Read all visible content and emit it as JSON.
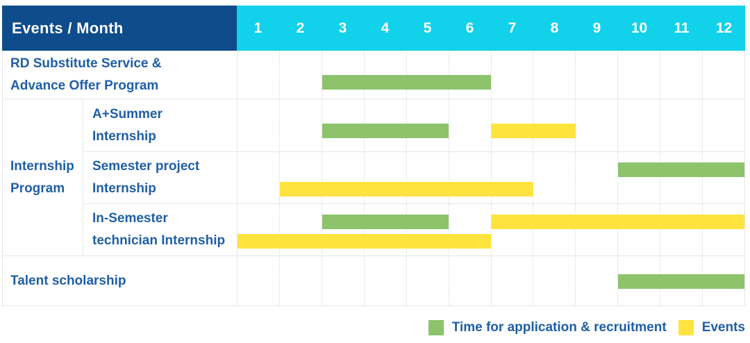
{
  "colors": {
    "navy": "#0E4C8B",
    "cyan": "#12D1EA",
    "green": "#8CC36B",
    "yellow": "#FFE33E",
    "label_blue": "#1E5FA6",
    "grid_line": "#E6E6E6",
    "grid_dot": "#D8D8D8"
  },
  "header": {
    "title": "Events / Month",
    "months": [
      "1",
      "2",
      "3",
      "4",
      "5",
      "6",
      "7",
      "8",
      "9",
      "10",
      "11",
      "12"
    ]
  },
  "group_label": "Internship\nProgram",
  "rows": [
    {
      "label": "RD Substitute Service &\nAdvance Offer Program",
      "lines": [
        [
          {
            "type": "green",
            "start": 3,
            "end": 6
          }
        ]
      ]
    },
    {
      "label": "A+Summer\nInternship",
      "lines": [
        [
          {
            "type": "green",
            "start": 3,
            "end": 5
          },
          {
            "type": "yellow",
            "start": 7,
            "end": 8
          }
        ]
      ]
    },
    {
      "label": "Semester project\nInternship",
      "lines": [
        [
          {
            "type": "green",
            "start": 10,
            "end": 12
          }
        ],
        [
          {
            "type": "yellow",
            "start": 2,
            "end": 7
          }
        ]
      ]
    },
    {
      "label": "In-Semester\ntechnician Internship",
      "lines": [
        [
          {
            "type": "green",
            "start": 3,
            "end": 5
          },
          {
            "type": "yellow",
            "start": 7,
            "end": 12
          }
        ],
        [
          {
            "type": "yellow",
            "start": 1,
            "end": 6
          }
        ]
      ]
    },
    {
      "label": "Talent scholarship",
      "lines": [
        [
          {
            "type": "green",
            "start": 10,
            "end": 12
          }
        ]
      ]
    }
  ],
  "legend": [
    {
      "color_key": "green",
      "label": "Time for application & recruitment"
    },
    {
      "color_key": "yellow",
      "label": "Events"
    }
  ],
  "chart_data": {
    "type": "gantt",
    "title": "Events / Month",
    "x_axis": {
      "label": "Month",
      "ticks": [
        1,
        2,
        3,
        4,
        5,
        6,
        7,
        8,
        9,
        10,
        11,
        12
      ],
      "range": [
        1,
        12
      ]
    },
    "grid": true,
    "legend_position": "bottom-right",
    "series_legend": {
      "green": "Time for application & recruitment",
      "yellow": "Events"
    },
    "tasks": [
      {
        "row": "RD Substitute Service & Advance Offer Program",
        "group": null,
        "bars": [
          {
            "kind": "Time for application & recruitment",
            "color": "green",
            "month_start": 3,
            "month_end": 6
          }
        ]
      },
      {
        "row": "A+Summer Internship",
        "group": "Internship Program",
        "bars": [
          {
            "kind": "Time for application & recruitment",
            "color": "green",
            "month_start": 3,
            "month_end": 5
          },
          {
            "kind": "Events",
            "color": "yellow",
            "month_start": 7,
            "month_end": 8
          }
        ]
      },
      {
        "row": "Semester project Internship",
        "group": "Internship Program",
        "bars": [
          {
            "kind": "Time for application & recruitment",
            "color": "green",
            "month_start": 10,
            "month_end": 12
          },
          {
            "kind": "Events",
            "color": "yellow",
            "month_start": 2,
            "month_end": 7
          }
        ]
      },
      {
        "row": "In-Semester technician Internship",
        "group": "Internship Program",
        "bars": [
          {
            "kind": "Time for application & recruitment",
            "color": "green",
            "month_start": 3,
            "month_end": 5
          },
          {
            "kind": "Events",
            "color": "yellow",
            "month_start": 7,
            "month_end": 12
          },
          {
            "kind": "Events",
            "color": "yellow",
            "month_start": 1,
            "month_end": 6
          }
        ]
      },
      {
        "row": "Talent scholarship",
        "group": null,
        "bars": [
          {
            "kind": "Time for application & recruitment",
            "color": "green",
            "month_start": 10,
            "month_end": 12
          }
        ]
      }
    ]
  }
}
